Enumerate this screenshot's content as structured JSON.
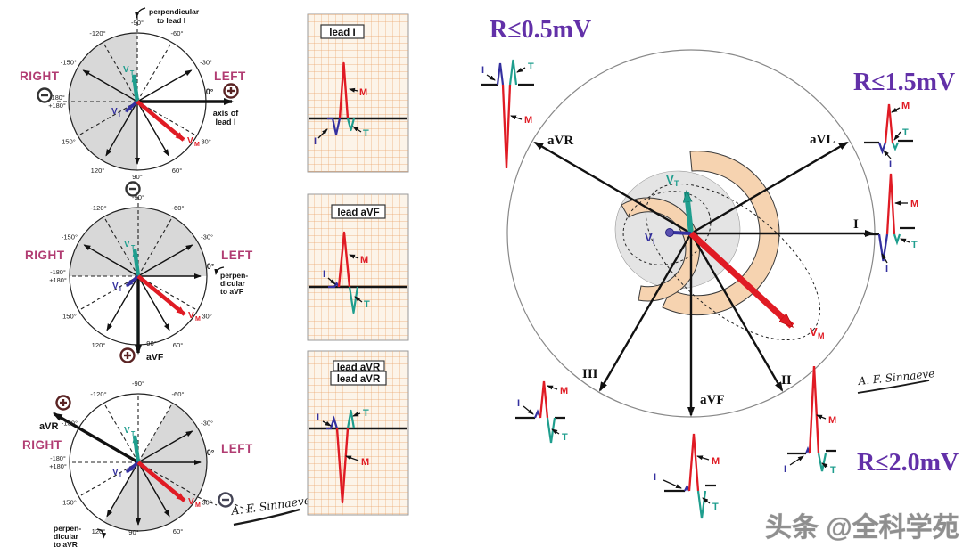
{
  "colors": {
    "accent_purple": "#6230a8",
    "maroon": "#b13c72",
    "red": "#e01b24",
    "teal": "#1f9e8e",
    "blue": "#3333aa",
    "grid_orange": "#eaa56b",
    "shade_gray": "#d8d8d8",
    "heart_peach": "#f6d3b0"
  },
  "hexaxial": {
    "right": "RIGHT",
    "left": "LEFT",
    "degrees": {
      "-150": "-150°",
      "-120": "-120°",
      "-90": "-90°",
      "-60": "-60°",
      "-30": "-30°",
      "0": "0°",
      "30": "30°",
      "60": "60°",
      "90": "90°",
      "120": "120°",
      "150": "150°",
      "n180": "-180°",
      "p180": "+180°"
    },
    "vector_v": "V",
    "sub_t": "T",
    "sub_i": "I",
    "sub_m": "M"
  },
  "circle1": {
    "perp_line1": "perpendicular",
    "perp_line2": "to lead I",
    "axis_line1": "axis of",
    "axis_line2": "lead I"
  },
  "circle2": {
    "perp_line1": "perpen-",
    "perp_line2": "dicular",
    "perp_line3": "to aVF",
    "axis": "aVF"
  },
  "circle3": {
    "perp_line1": "perpen-",
    "perp_line2": "dicular",
    "perp_line3": "to aVR",
    "axis": "aVR"
  },
  "panels": [
    {
      "title": "lead I"
    },
    {
      "title": "lead aVF"
    },
    {
      "title": "lead aVR"
    }
  ],
  "waves": {
    "m": "M",
    "t": "T",
    "i": "I"
  },
  "big": {
    "leads": {
      "avr": "aVR",
      "avl": "aVL",
      "i": "I",
      "ii": "II",
      "avf": "aVF",
      "iii": "III"
    },
    "thresholds": [
      "R≤0.5mV",
      "R≤1.5mV",
      "R≤2.0mV"
    ]
  },
  "signature": "A. F. Sinnaeve",
  "watermark": "头条 @全科学苑"
}
